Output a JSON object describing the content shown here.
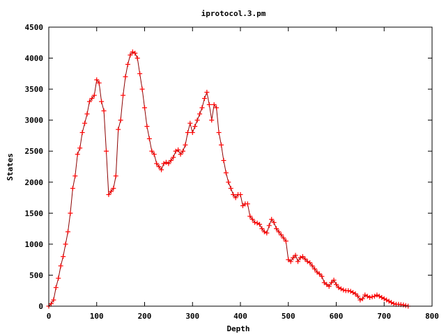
{
  "chart_data": {
    "type": "line",
    "title": "iprotocol.3.pm",
    "xlabel": "Depth",
    "ylabel": "States",
    "xlim": [
      0,
      800
    ],
    "ylim": [
      0,
      4500
    ],
    "xticks": [
      0,
      100,
      200,
      300,
      400,
      500,
      600,
      700,
      800
    ],
    "yticks": [
      0,
      500,
      1000,
      1500,
      2000,
      2500,
      3000,
      3500,
      4000,
      4500
    ],
    "grid": false,
    "legend": "none",
    "colors": {
      "line": "#8b0000",
      "marker": "#ff0000"
    },
    "series": [
      {
        "marker": "plus",
        "x": [
          0,
          5,
          10,
          15,
          20,
          25,
          30,
          35,
          40,
          45,
          50,
          55,
          60,
          65,
          70,
          75,
          80,
          85,
          90,
          95,
          100,
          105,
          110,
          115,
          120,
          125,
          130,
          135,
          140,
          145,
          150,
          155,
          160,
          165,
          170,
          175,
          180,
          185,
          190,
          195,
          200,
          205,
          210,
          215,
          220,
          225,
          230,
          235,
          240,
          245,
          250,
          255,
          260,
          265,
          270,
          275,
          280,
          285,
          290,
          295,
          300,
          305,
          310,
          315,
          320,
          325,
          330,
          335,
          340,
          345,
          350,
          355,
          360,
          365,
          370,
          375,
          380,
          385,
          390,
          395,
          400,
          405,
          410,
          415,
          420,
          425,
          430,
          435,
          440,
          445,
          450,
          455,
          460,
          465,
          470,
          475,
          480,
          485,
          490,
          495,
          500,
          505,
          510,
          515,
          520,
          525,
          530,
          535,
          540,
          545,
          550,
          555,
          560,
          565,
          570,
          575,
          580,
          585,
          590,
          595,
          600,
          605,
          610,
          615,
          620,
          625,
          630,
          635,
          640,
          645,
          650,
          655,
          660,
          665,
          670,
          675,
          680,
          685,
          690,
          695,
          700,
          705,
          710,
          715,
          720,
          725,
          730,
          735,
          740,
          745,
          750
        ],
        "y": [
          0,
          40,
          100,
          300,
          450,
          650,
          800,
          1000,
          1200,
          1500,
          1900,
          2100,
          2450,
          2550,
          2800,
          2950,
          3100,
          3300,
          3350,
          3400,
          3650,
          3600,
          3300,
          3150,
          2500,
          1800,
          1850,
          1900,
          2100,
          2850,
          3000,
          3400,
          3700,
          3900,
          4050,
          4100,
          4080,
          4000,
          3750,
          3500,
          3200,
          2900,
          2700,
          2500,
          2450,
          2300,
          2250,
          2200,
          2300,
          2320,
          2300,
          2350,
          2400,
          2500,
          2520,
          2450,
          2500,
          2600,
          2800,
          2950,
          2800,
          2900,
          3000,
          3100,
          3200,
          3350,
          3450,
          3250,
          3000,
          3250,
          3200,
          2800,
          2600,
          2350,
          2150,
          2000,
          1900,
          1800,
          1750,
          1800,
          1800,
          1620,
          1650,
          1650,
          1450,
          1400,
          1350,
          1340,
          1320,
          1250,
          1200,
          1180,
          1300,
          1400,
          1350,
          1250,
          1200,
          1150,
          1100,
          1050,
          750,
          720,
          780,
          820,
          720,
          780,
          800,
          760,
          720,
          700,
          650,
          600,
          550,
          520,
          480,
          380,
          350,
          320,
          380,
          420,
          350,
          300,
          280,
          260,
          250,
          250,
          240,
          220,
          200,
          160,
          100,
          120,
          180,
          160,
          140,
          150,
          160,
          180,
          160,
          140,
          120,
          100,
          80,
          60,
          40,
          30,
          30,
          25,
          20,
          10,
          0
        ]
      }
    ]
  }
}
